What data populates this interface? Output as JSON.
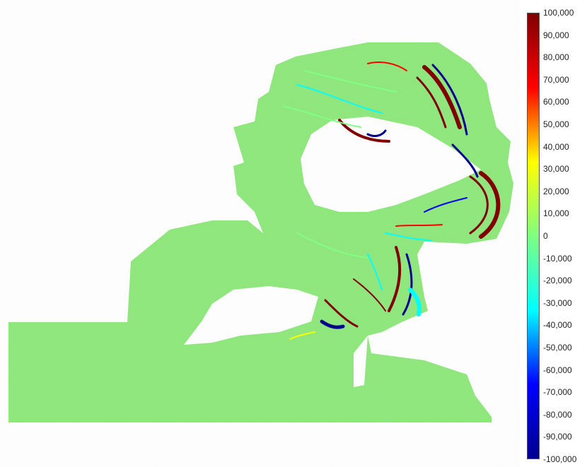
{
  "chart_data": {
    "type": "heatmap",
    "title": "",
    "xlabel": "",
    "ylabel": "",
    "colorbar": {
      "min": -100000,
      "max": 100000,
      "tick_labels": [
        "100,000",
        "90,000",
        "80,000",
        "70,000",
        "60,000",
        "50,000",
        "40,000",
        "30,000",
        "20,000",
        "10,000",
        "0",
        "-10,000",
        "-20,000",
        "-30,000",
        "-40,000",
        "-50,000",
        "-60,000",
        "-70,000",
        "-80,000",
        "-90,000",
        "-100,000"
      ],
      "colormap": "jet",
      "position": "right"
    },
    "background_value": 0,
    "hotspots": [
      {
        "region": "upper-right lobe",
        "max_value": 100000,
        "min_value": -100000
      },
      {
        "region": "right central band",
        "max_value": 100000,
        "min_value": -100000
      },
      {
        "region": "lower central basin",
        "max_value": 100000,
        "min_value": -100000
      }
    ]
  },
  "colors": {
    "base_field": "#8ee87b",
    "jet_stops": [
      "#00008f",
      "#0000ff",
      "#00ffff",
      "#80ff80",
      "#ffff00",
      "#ff0000",
      "#800000"
    ]
  }
}
